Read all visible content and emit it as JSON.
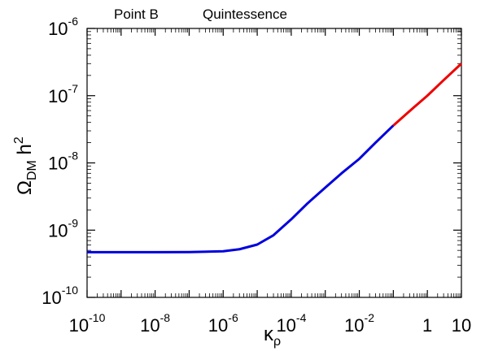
{
  "chart_data": {
    "type": "line",
    "title_left": "Point B",
    "title_right": "Quintessence",
    "xlabel": {
      "main": "κ",
      "sub": "ρ"
    },
    "ylabel": {
      "main": "Ω",
      "sub": "DM",
      "tail": " h",
      "sup": "2"
    },
    "x_scale": "log",
    "y_scale": "log",
    "xlim": [
      1e-10,
      10
    ],
    "ylim": [
      1e-10,
      1e-06
    ],
    "grid": false,
    "x_ticks": [
      {
        "value": 1e-10,
        "base": "10",
        "exp": "-10"
      },
      {
        "value": 1e-08,
        "base": "10",
        "exp": "-8"
      },
      {
        "value": 1e-06,
        "base": "10",
        "exp": "-6"
      },
      {
        "value": 0.0001,
        "base": "10",
        "exp": "-4"
      },
      {
        "value": 0.01,
        "base": "10",
        "exp": "-2"
      },
      {
        "value": 1,
        "base": "1",
        "exp": ""
      },
      {
        "value": 10,
        "base": "10",
        "exp": ""
      }
    ],
    "y_ticks": [
      {
        "value": 1e-10,
        "base": "10",
        "exp": "-10"
      },
      {
        "value": 1e-09,
        "base": "10",
        "exp": "-9"
      },
      {
        "value": 1e-08,
        "base": "10",
        "exp": "-8"
      },
      {
        "value": 1e-07,
        "base": "10",
        "exp": "-7"
      },
      {
        "value": 1e-06,
        "base": "10",
        "exp": "-6"
      }
    ],
    "series": [
      {
        "color": "#0000dd",
        "x": [
          1e-10,
          1e-09,
          1e-08,
          1e-07,
          1e-06,
          3e-06,
          1e-05,
          3e-05,
          0.0001,
          0.0003,
          0.001,
          0.003,
          0.01,
          0.03,
          0.1
        ],
        "y": [
          4.7e-10,
          4.7e-10,
          4.7e-10,
          4.72e-10,
          4.85e-10,
          5.2e-10,
          6.1e-10,
          8.4e-10,
          1.45e-09,
          2.5e-09,
          4.3e-09,
          7e-09,
          1.15e-08,
          2e-08,
          3.6e-08
        ]
      },
      {
        "color": "#ee0000",
        "x": [
          0.1,
          0.3,
          1,
          3,
          10
        ],
        "y": [
          3.6e-08,
          5.9e-08,
          1e-07,
          1.7e-07,
          3e-07
        ]
      }
    ]
  }
}
